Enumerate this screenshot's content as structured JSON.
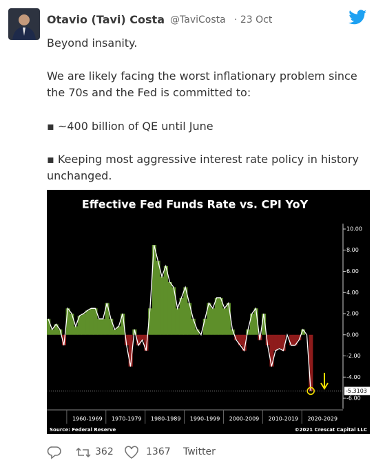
{
  "tweet": {
    "author": "Otavio (Tavi) Costa",
    "handle": "@TaviCosta",
    "date": "· 23 Oct",
    "paragraphs": [
      "Beyond insanity.",
      "We are likely facing the worst inflationary problem since the 70s and the Fed is committed to:",
      "▪ ~400 billion of QE until June",
      "▪ Keeping most aggressive interest rate policy in history unchanged."
    ],
    "retweets": 362,
    "likes": 1367,
    "source": "Twitter"
  },
  "chart_data": {
    "type": "area",
    "title": "Effective Fed Funds Rate vs. CPI YoY",
    "categories": [
      null,
      null,
      null,
      null,
      null,
      null,
      null,
      null,
      null,
      null,
      "1960-1969",
      null,
      null,
      null,
      null,
      null,
      null,
      null,
      null,
      null,
      "1970-1979",
      null,
      null,
      null,
      null,
      null,
      null,
      null,
      null,
      null,
      "1980-1989",
      null,
      null,
      null,
      null,
      null,
      null,
      null,
      null,
      null,
      "1990-1999",
      null,
      null,
      null,
      null,
      null,
      null,
      null,
      null,
      null,
      "2000-2009",
      null,
      null,
      null,
      null,
      null,
      null,
      null,
      null,
      null,
      "2010-2019",
      null,
      null,
      null,
      null,
      null,
      null,
      null,
      null,
      null,
      "2020-2029",
      null,
      null,
      null,
      null
    ],
    "values": [
      1.5,
      0.5,
      1.0,
      0.5,
      -1.0,
      2.5,
      2.0,
      0.8,
      1.8,
      2.0,
      2.3,
      2.5,
      2.5,
      1.5,
      1.5,
      3.0,
      1.5,
      0.5,
      0.8,
      2.0,
      -1.0,
      -3.0,
      0.5,
      -1.0,
      -0.5,
      -1.5,
      2.5,
      8.5,
      7.0,
      5.5,
      6.5,
      5.0,
      4.5,
      2.5,
      3.5,
      4.5,
      3.0,
      1.5,
      0.5,
      0.0,
      1.5,
      3.0,
      2.5,
      3.5,
      3.5,
      2.5,
      3.0,
      0.5,
      -0.5,
      -1.0,
      -1.5,
      0.5,
      2.0,
      2.5,
      -0.5,
      2.0,
      -1.0,
      -3.0,
      -1.5,
      -1.3,
      -1.5,
      0.0,
      -1.0,
      -1.0,
      -0.5,
      0.5,
      0.0,
      -5.3103,
      null,
      null,
      null,
      null,
      null,
      null,
      null
    ],
    "color": "#ffffff",
    "positive_color": "#5e8f2a",
    "negative_color": "#8e1b1b",
    "ylim": [
      -7,
      10.5
    ],
    "yticks": [
      {
        "value": 10,
        "label": "10.00"
      },
      {
        "value": 8,
        "label": "8.00"
      },
      {
        "value": 6,
        "label": "6.00"
      },
      {
        "value": 4,
        "label": "4.00"
      },
      {
        "value": 2,
        "label": "2.00"
      },
      {
        "value": 0,
        "label": "0.00"
      },
      {
        "value": -2,
        "label": "-2.00"
      },
      {
        "value": -4,
        "label": "-4.00"
      },
      {
        "value": -6,
        "label": "-6.00"
      }
    ],
    "grid": false,
    "source": "Source: Federal Reserve",
    "copyright": "©2021 Crescat Capital LLC"
  }
}
